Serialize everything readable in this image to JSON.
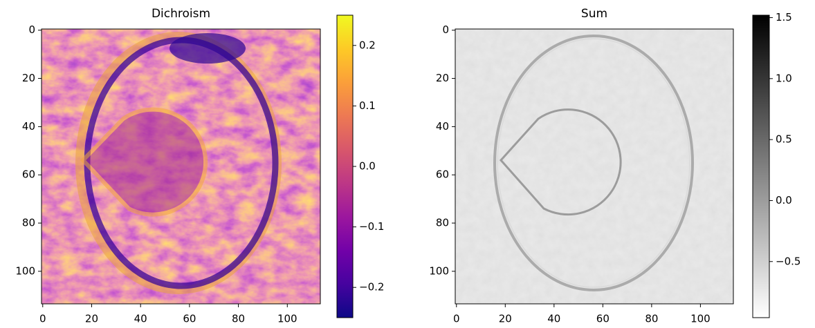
{
  "chart_data": [
    {
      "type": "image",
      "title": "Dichroism",
      "cmap": "plasma",
      "xlim": [
        -0.5,
        113.5
      ],
      "ylim": [
        113.5,
        -0.5
      ],
      "xticks": [
        0,
        20,
        40,
        60,
        80,
        100
      ],
      "yticks": [
        0,
        20,
        40,
        60,
        80,
        100
      ],
      "clim": [
        -0.25,
        0.25
      ],
      "cticks": [
        {
          "value": -0.2,
          "label": "−0.2"
        },
        {
          "value": -0.1,
          "label": "−0.1"
        },
        {
          "value": 0,
          "label": "0.0"
        },
        0.1,
        0.2
      ]
    },
    {
      "type": "image",
      "title": "Sum",
      "cmap": "gray_r",
      "xlim": [
        -0.5,
        113.5
      ],
      "ylim": [
        113.5,
        -0.5
      ],
      "xticks": [
        0,
        20,
        40,
        60,
        80,
        100
      ],
      "yticks": [
        0,
        20,
        40,
        60,
        80,
        100
      ],
      "clim": [
        -0.96,
        1.52
      ],
      "cticks": [
        {
          "value": -0.5,
          "label": "−0.5"
        },
        {
          "value": 0,
          "label": "0.0"
        },
        0.5,
        {
          "value": 1,
          "label": "1.0"
        },
        1.5
      ]
    }
  ]
}
